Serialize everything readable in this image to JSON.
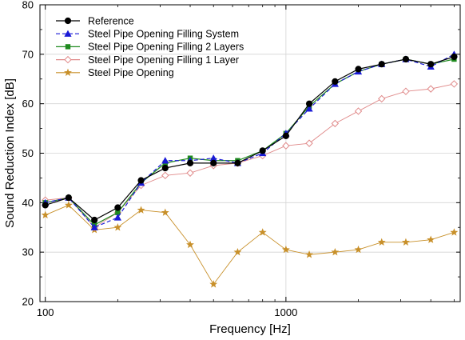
{
  "chart_data": {
    "type": "line",
    "xlabel": "Frequency [Hz]",
    "ylabel": "Sound Reduction Index [dB]",
    "x_scale": "log",
    "xlim": [
      95,
      5300
    ],
    "ylim": [
      20,
      80
    ],
    "yticks": [
      20,
      30,
      40,
      50,
      60,
      70,
      80
    ],
    "xticks": [
      100,
      1000
    ],
    "grid": true,
    "legend_position": "top-left",
    "x": [
      100,
      125,
      160,
      200,
      250,
      315,
      400,
      500,
      630,
      800,
      1000,
      1250,
      1600,
      2000,
      2500,
      3150,
      4000,
      5000
    ],
    "series": [
      {
        "name": "Reference",
        "color": "#000000",
        "dash": "solid",
        "marker": "circle",
        "values": [
          39.5,
          41,
          36.5,
          39,
          44.5,
          47,
          48,
          48,
          48,
          50.5,
          53.5,
          60,
          64.5,
          67,
          68,
          69,
          68,
          69.5
        ]
      },
      {
        "name": "Steel Pipe Opening Filling System",
        "color": "#1a1ad6",
        "dash": "dash",
        "marker": "triangle",
        "values": [
          40,
          41,
          35,
          37,
          44,
          48.5,
          48.5,
          49,
          48,
          50,
          54,
          59,
          64,
          66.5,
          68,
          69,
          67.5,
          70
        ]
      },
      {
        "name": "Steel Pipe Opening Filling 2 Layers",
        "color": "#1e8a1e",
        "dash": "solid",
        "marker": "square",
        "values": [
          40,
          41,
          35.5,
          38,
          44,
          48,
          49,
          48.5,
          48.5,
          50.5,
          54,
          59.5,
          64,
          66.5,
          68,
          69,
          68,
          69
        ]
      },
      {
        "name": "Steel Pipe Opening Filling 1 Layer",
        "color": "#e08a8a",
        "dash": "solid",
        "marker": "diamond",
        "values": [
          40.5,
          41,
          35,
          38,
          43.5,
          45.5,
          46,
          47.5,
          48,
          49.5,
          51.5,
          52,
          56,
          58.5,
          61,
          62.5,
          63,
          64
        ]
      },
      {
        "name": "Steel Pipe Opening",
        "color": "#c8902a",
        "dash": "solid",
        "marker": "star",
        "values": [
          37.5,
          39.5,
          34.5,
          35,
          38.5,
          38,
          31.5,
          23.5,
          30,
          34,
          30.5,
          29.5,
          30,
          30.5,
          32,
          32,
          32.5,
          34
        ]
      }
    ]
  }
}
